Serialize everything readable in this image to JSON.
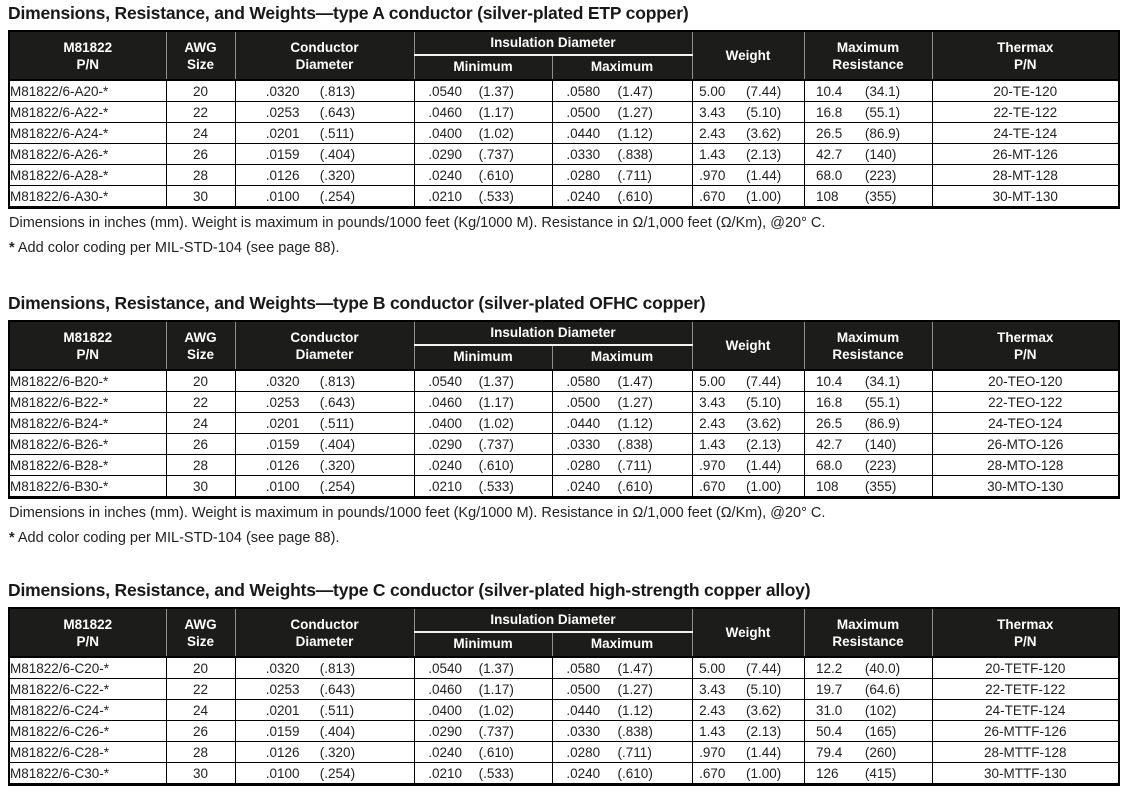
{
  "table_header": {
    "pn": [
      "M81822",
      "P/N"
    ],
    "awg": [
      "AWG",
      "Size"
    ],
    "cond": [
      "Conductor",
      "Diameter"
    ],
    "ins_group": "Insulation Diameter",
    "ins_min": "Minimum",
    "ins_max": "Maximum",
    "weight": "Weight",
    "resistance": [
      "Maximum",
      "Resistance"
    ],
    "thermax": [
      "Thermax",
      "P/N"
    ]
  },
  "columns": [
    {
      "key": "pn",
      "type": "text-left"
    },
    {
      "key": "awg",
      "type": "center"
    },
    {
      "key": "cond",
      "type": "pair"
    },
    {
      "key": "ins_min",
      "type": "pair"
    },
    {
      "key": "ins_max",
      "type": "pair"
    },
    {
      "key": "weight",
      "type": "pair"
    },
    {
      "key": "resistance",
      "type": "pair"
    },
    {
      "key": "thermax",
      "type": "center"
    }
  ],
  "footnotes": {
    "line1": "Dimensions in inches (mm).  Weight is maximum in pounds/1000 feet (Kg/1000 M).  Resistance in Ω/1,000 feet (Ω/Km), @20° C.",
    "line2_star": "*",
    "line2_text": " Add color coding per MIL-STD-104 (see page 88)."
  },
  "tables": [
    {
      "title": "Dimensions, Resistance, and Weights—type A conductor (silver-plated ETP copper)",
      "rows": [
        {
          "pn": "M81822/6-A20-*",
          "awg": "20",
          "cond": [
            ".0320",
            "(.813)"
          ],
          "ins_min": [
            ".0540",
            "(1.37)"
          ],
          "ins_max": [
            ".0580",
            "(1.47)"
          ],
          "weight": [
            "5.00",
            "(7.44)"
          ],
          "resistance": [
            "10.4",
            "(34.1)"
          ],
          "thermax": "20-TE-120"
        },
        {
          "pn": "M81822/6-A22-*",
          "awg": "22",
          "cond": [
            ".0253",
            "(.643)"
          ],
          "ins_min": [
            ".0460",
            "(1.17)"
          ],
          "ins_max": [
            ".0500",
            "(1.27)"
          ],
          "weight": [
            "3.43",
            "(5.10)"
          ],
          "resistance": [
            "16.8",
            "(55.1)"
          ],
          "thermax": "22-TE-122"
        },
        {
          "pn": "M81822/6-A24-*",
          "awg": "24",
          "cond": [
            ".0201",
            "(.511)"
          ],
          "ins_min": [
            ".0400",
            "(1.02)"
          ],
          "ins_max": [
            ".0440",
            "(1.12)"
          ],
          "weight": [
            "2.43",
            "(3.62)"
          ],
          "resistance": [
            "26.5",
            "(86.9)"
          ],
          "thermax": "24-TE-124"
        },
        {
          "pn": "M81822/6-A26-*",
          "awg": "26",
          "cond": [
            ".0159",
            "(.404)"
          ],
          "ins_min": [
            ".0290",
            "(.737)"
          ],
          "ins_max": [
            ".0330",
            "(.838)"
          ],
          "weight": [
            "1.43",
            "(2.13)"
          ],
          "resistance": [
            "42.7",
            "(140)"
          ],
          "thermax": "26-MT-126"
        },
        {
          "pn": "M81822/6-A28-*",
          "awg": "28",
          "cond": [
            ".0126",
            "(.320)"
          ],
          "ins_min": [
            ".0240",
            "(.610)"
          ],
          "ins_max": [
            ".0280",
            "(.711)"
          ],
          "weight": [
            ".970",
            "(1.44)"
          ],
          "resistance": [
            "68.0",
            "(223)"
          ],
          "thermax": "28-MT-128"
        },
        {
          "pn": "M81822/6-A30-*",
          "awg": "30",
          "cond": [
            ".0100",
            "(.254)"
          ],
          "ins_min": [
            ".0210",
            "(.533)"
          ],
          "ins_max": [
            ".0240",
            "(.610)"
          ],
          "weight": [
            ".670",
            "(1.00)"
          ],
          "resistance": [
            "108",
            "(355)"
          ],
          "thermax": "30-MT-130"
        }
      ],
      "has_footnotes": true
    },
    {
      "title": "Dimensions, Resistance, and Weights—type B conductor (silver-plated OFHC copper)",
      "rows": [
        {
          "pn": "M81822/6-B20-*",
          "awg": "20",
          "cond": [
            ".0320",
            "(.813)"
          ],
          "ins_min": [
            ".0540",
            "(1.37)"
          ],
          "ins_max": [
            ".0580",
            "(1.47)"
          ],
          "weight": [
            "5.00",
            "(7.44)"
          ],
          "resistance": [
            "10.4",
            "(34.1)"
          ],
          "thermax": "20-TEO-120"
        },
        {
          "pn": "M81822/6-B22-*",
          "awg": "22",
          "cond": [
            ".0253",
            "(.643)"
          ],
          "ins_min": [
            ".0460",
            "(1.17)"
          ],
          "ins_max": [
            ".0500",
            "(1.27)"
          ],
          "weight": [
            "3.43",
            "(5.10)"
          ],
          "resistance": [
            "16.8",
            "(55.1)"
          ],
          "thermax": "22-TEO-122"
        },
        {
          "pn": "M81822/6-B24-*",
          "awg": "24",
          "cond": [
            ".0201",
            "(.511)"
          ],
          "ins_min": [
            ".0400",
            "(1.02)"
          ],
          "ins_max": [
            ".0440",
            "(1.12)"
          ],
          "weight": [
            "2.43",
            "(3.62)"
          ],
          "resistance": [
            "26.5",
            "(86.9)"
          ],
          "thermax": "24-TEO-124"
        },
        {
          "pn": "M81822/6-B26-*",
          "awg": "26",
          "cond": [
            ".0159",
            "(.404)"
          ],
          "ins_min": [
            ".0290",
            "(.737)"
          ],
          "ins_max": [
            ".0330",
            "(.838)"
          ],
          "weight": [
            "1.43",
            "(2.13)"
          ],
          "resistance": [
            "42.7",
            "(140)"
          ],
          "thermax": "26-MTO-126"
        },
        {
          "pn": "M81822/6-B28-*",
          "awg": "28",
          "cond": [
            ".0126",
            "(.320)"
          ],
          "ins_min": [
            ".0240",
            "(.610)"
          ],
          "ins_max": [
            ".0280",
            "(.711)"
          ],
          "weight": [
            ".970",
            "(1.44)"
          ],
          "resistance": [
            "68.0",
            "(223)"
          ],
          "thermax": "28-MTO-128"
        },
        {
          "pn": "M81822/6-B30-*",
          "awg": "30",
          "cond": [
            ".0100",
            "(.254)"
          ],
          "ins_min": [
            ".0210",
            "(.533)"
          ],
          "ins_max": [
            ".0240",
            "(.610)"
          ],
          "weight": [
            ".670",
            "(1.00)"
          ],
          "resistance": [
            "108",
            "(355)"
          ],
          "thermax": "30-MTO-130"
        }
      ],
      "has_footnotes": true
    },
    {
      "title": "Dimensions, Resistance, and Weights—type C conductor (silver-plated high-strength copper alloy)",
      "rows": [
        {
          "pn": "M81822/6-C20-*",
          "awg": "20",
          "cond": [
            ".0320",
            "(.813)"
          ],
          "ins_min": [
            ".0540",
            "(1.37)"
          ],
          "ins_max": [
            ".0580",
            "(1.47)"
          ],
          "weight": [
            "5.00",
            "(7.44)"
          ],
          "resistance": [
            "12.2",
            "(40.0)"
          ],
          "thermax": "20-TETF-120"
        },
        {
          "pn": "M81822/6-C22-*",
          "awg": "22",
          "cond": [
            ".0253",
            "(.643)"
          ],
          "ins_min": [
            ".0460",
            "(1.17)"
          ],
          "ins_max": [
            ".0500",
            "(1.27)"
          ],
          "weight": [
            "3.43",
            "(5.10)"
          ],
          "resistance": [
            "19.7",
            "(64.6)"
          ],
          "thermax": "22-TETF-122"
        },
        {
          "pn": "M81822/6-C24-*",
          "awg": "24",
          "cond": [
            ".0201",
            "(.511)"
          ],
          "ins_min": [
            ".0400",
            "(1.02)"
          ],
          "ins_max": [
            ".0440",
            "(1.12)"
          ],
          "weight": [
            "2.43",
            "(3.62)"
          ],
          "resistance": [
            "31.0",
            "(102)"
          ],
          "thermax": "24-TETF-124"
        },
        {
          "pn": "M81822/6-C26-*",
          "awg": "26",
          "cond": [
            ".0159",
            "(.404)"
          ],
          "ins_min": [
            ".0290",
            "(.737)"
          ],
          "ins_max": [
            ".0330",
            "(.838)"
          ],
          "weight": [
            "1.43",
            "(2.13)"
          ],
          "resistance": [
            "50.4",
            "(165)"
          ],
          "thermax": "26-MTTF-126"
        },
        {
          "pn": "M81822/6-C28-*",
          "awg": "28",
          "cond": [
            ".0126",
            "(.320)"
          ],
          "ins_min": [
            ".0240",
            "(.610)"
          ],
          "ins_max": [
            ".0280",
            "(.711)"
          ],
          "weight": [
            ".970",
            "(1.44)"
          ],
          "resistance": [
            "79.4",
            "(260)"
          ],
          "thermax": "28-MTTF-128"
        },
        {
          "pn": "M81822/6-C30-*",
          "awg": "30",
          "cond": [
            ".0100",
            "(.254)"
          ],
          "ins_min": [
            ".0210",
            "(.533)"
          ],
          "ins_max": [
            ".0240",
            "(.610)"
          ],
          "weight": [
            ".670",
            "(1.00)"
          ],
          "resistance": [
            "126",
            "(415)"
          ],
          "thermax": "30-MTTF-130"
        }
      ],
      "has_footnotes": false
    }
  ],
  "colors": {
    "header_bg": "#1c1c1a",
    "header_text": "#ffffff",
    "border": "#000000",
    "header_divider": "#8f8f8f"
  }
}
